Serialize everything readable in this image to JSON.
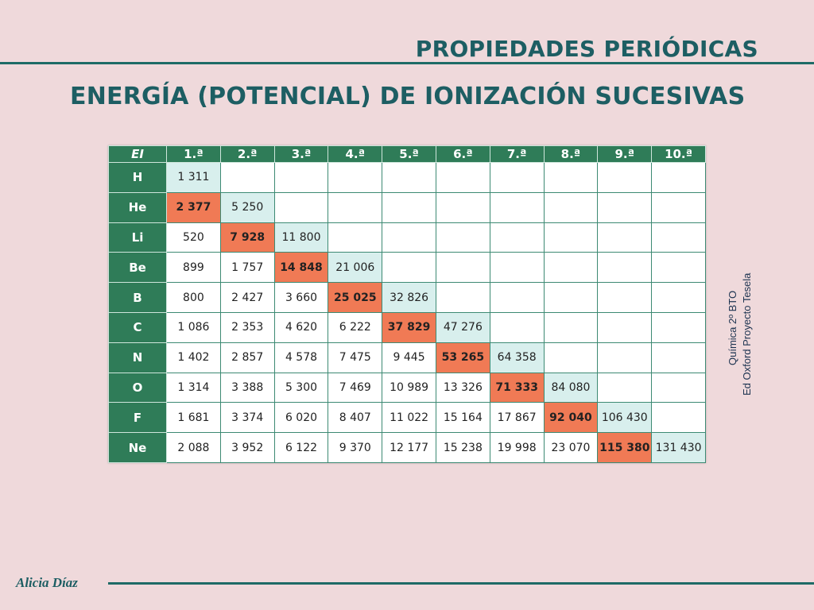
{
  "title": "PROPIEDADES PERIÓDICAS",
  "subtitle": "ENERGÍA (POTENCIAL) DE IONIZACIÓN SUCESIVAS",
  "table": {
    "corner": "EI",
    "columns": [
      "1.ª",
      "2.ª",
      "3.ª",
      "4.ª",
      "5.ª",
      "6.ª",
      "7.ª",
      "8.ª",
      "9.ª",
      "10.ª"
    ],
    "rows": [
      {
        "element": "H",
        "values": [
          "1 311"
        ]
      },
      {
        "element": "He",
        "values": [
          "2 377",
          "5 250"
        ]
      },
      {
        "element": "Li",
        "values": [
          "520",
          "7 928",
          "11 800"
        ]
      },
      {
        "element": "Be",
        "values": [
          "899",
          "1 757",
          "14 848",
          "21 006"
        ]
      },
      {
        "element": "B",
        "values": [
          "800",
          "2 427",
          "3 660",
          "25 025",
          "32 826"
        ]
      },
      {
        "element": "C",
        "values": [
          "1 086",
          "2 353",
          "4 620",
          "6 222",
          "37 829",
          "47 276"
        ]
      },
      {
        "element": "N",
        "values": [
          "1 402",
          "2 857",
          "4 578",
          "7 475",
          "9 445",
          "53 265",
          "64 358"
        ]
      },
      {
        "element": "O",
        "values": [
          "1 314",
          "3 388",
          "5 300",
          "7 469",
          "10 989",
          "13 326",
          "71 333",
          "84 080"
        ]
      },
      {
        "element": "F",
        "values": [
          "1 681",
          "3 374",
          "6 020",
          "8 407",
          "11 022",
          "15 164",
          "17 867",
          "92 040",
          "106 430"
        ]
      },
      {
        "element": "Ne",
        "values": [
          "2 088",
          "3 952",
          "6 122",
          "9 370",
          "12 177",
          "15 238",
          "19 998",
          "23 070",
          "115 380",
          "131 430"
        ]
      }
    ],
    "highlight_color": "#f07a55",
    "header_color": "#2f7c58"
  },
  "credit": {
    "line1": "Química 2º BTO",
    "line2": "Ed Oxford   Proyecto Tesela"
  },
  "author": "Alicia Díaz"
}
